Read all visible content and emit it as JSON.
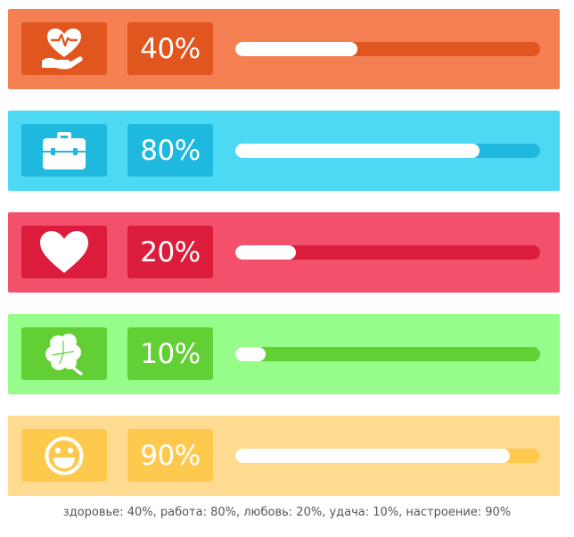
{
  "rows": [
    {
      "key": "health",
      "icon": "heart-hand-icon",
      "percent_label": "40%",
      "progress": 0.4,
      "bg": "#f37f52",
      "box": "#e0561e",
      "track": "#e0561e"
    },
    {
      "key": "work",
      "icon": "briefcase-icon",
      "percent_label": "80%",
      "progress": 0.8,
      "bg": "#4dd9f3",
      "box": "#1fb8de",
      "track": "#1fb8de"
    },
    {
      "key": "love",
      "icon": "heart-icon",
      "percent_label": "20%",
      "progress": 0.2,
      "bg": "#f3506c",
      "box": "#db1c3c",
      "track": "#db1c3c"
    },
    {
      "key": "luck",
      "icon": "clover-icon",
      "percent_label": "10%",
      "progress": 0.1,
      "bg": "#96fc8a",
      "box": "#62cf34",
      "track": "#62cf34"
    },
    {
      "key": "mood",
      "icon": "smiley-icon",
      "percent_label": "90%",
      "progress": 0.9,
      "bg": "#ffdb91",
      "box": "#ffc94d",
      "track": "#ffc94d"
    }
  ],
  "caption": "здоровье: 40%, работа: 80%, любовь: 20%, удача: 10%, настроение: 90%"
}
